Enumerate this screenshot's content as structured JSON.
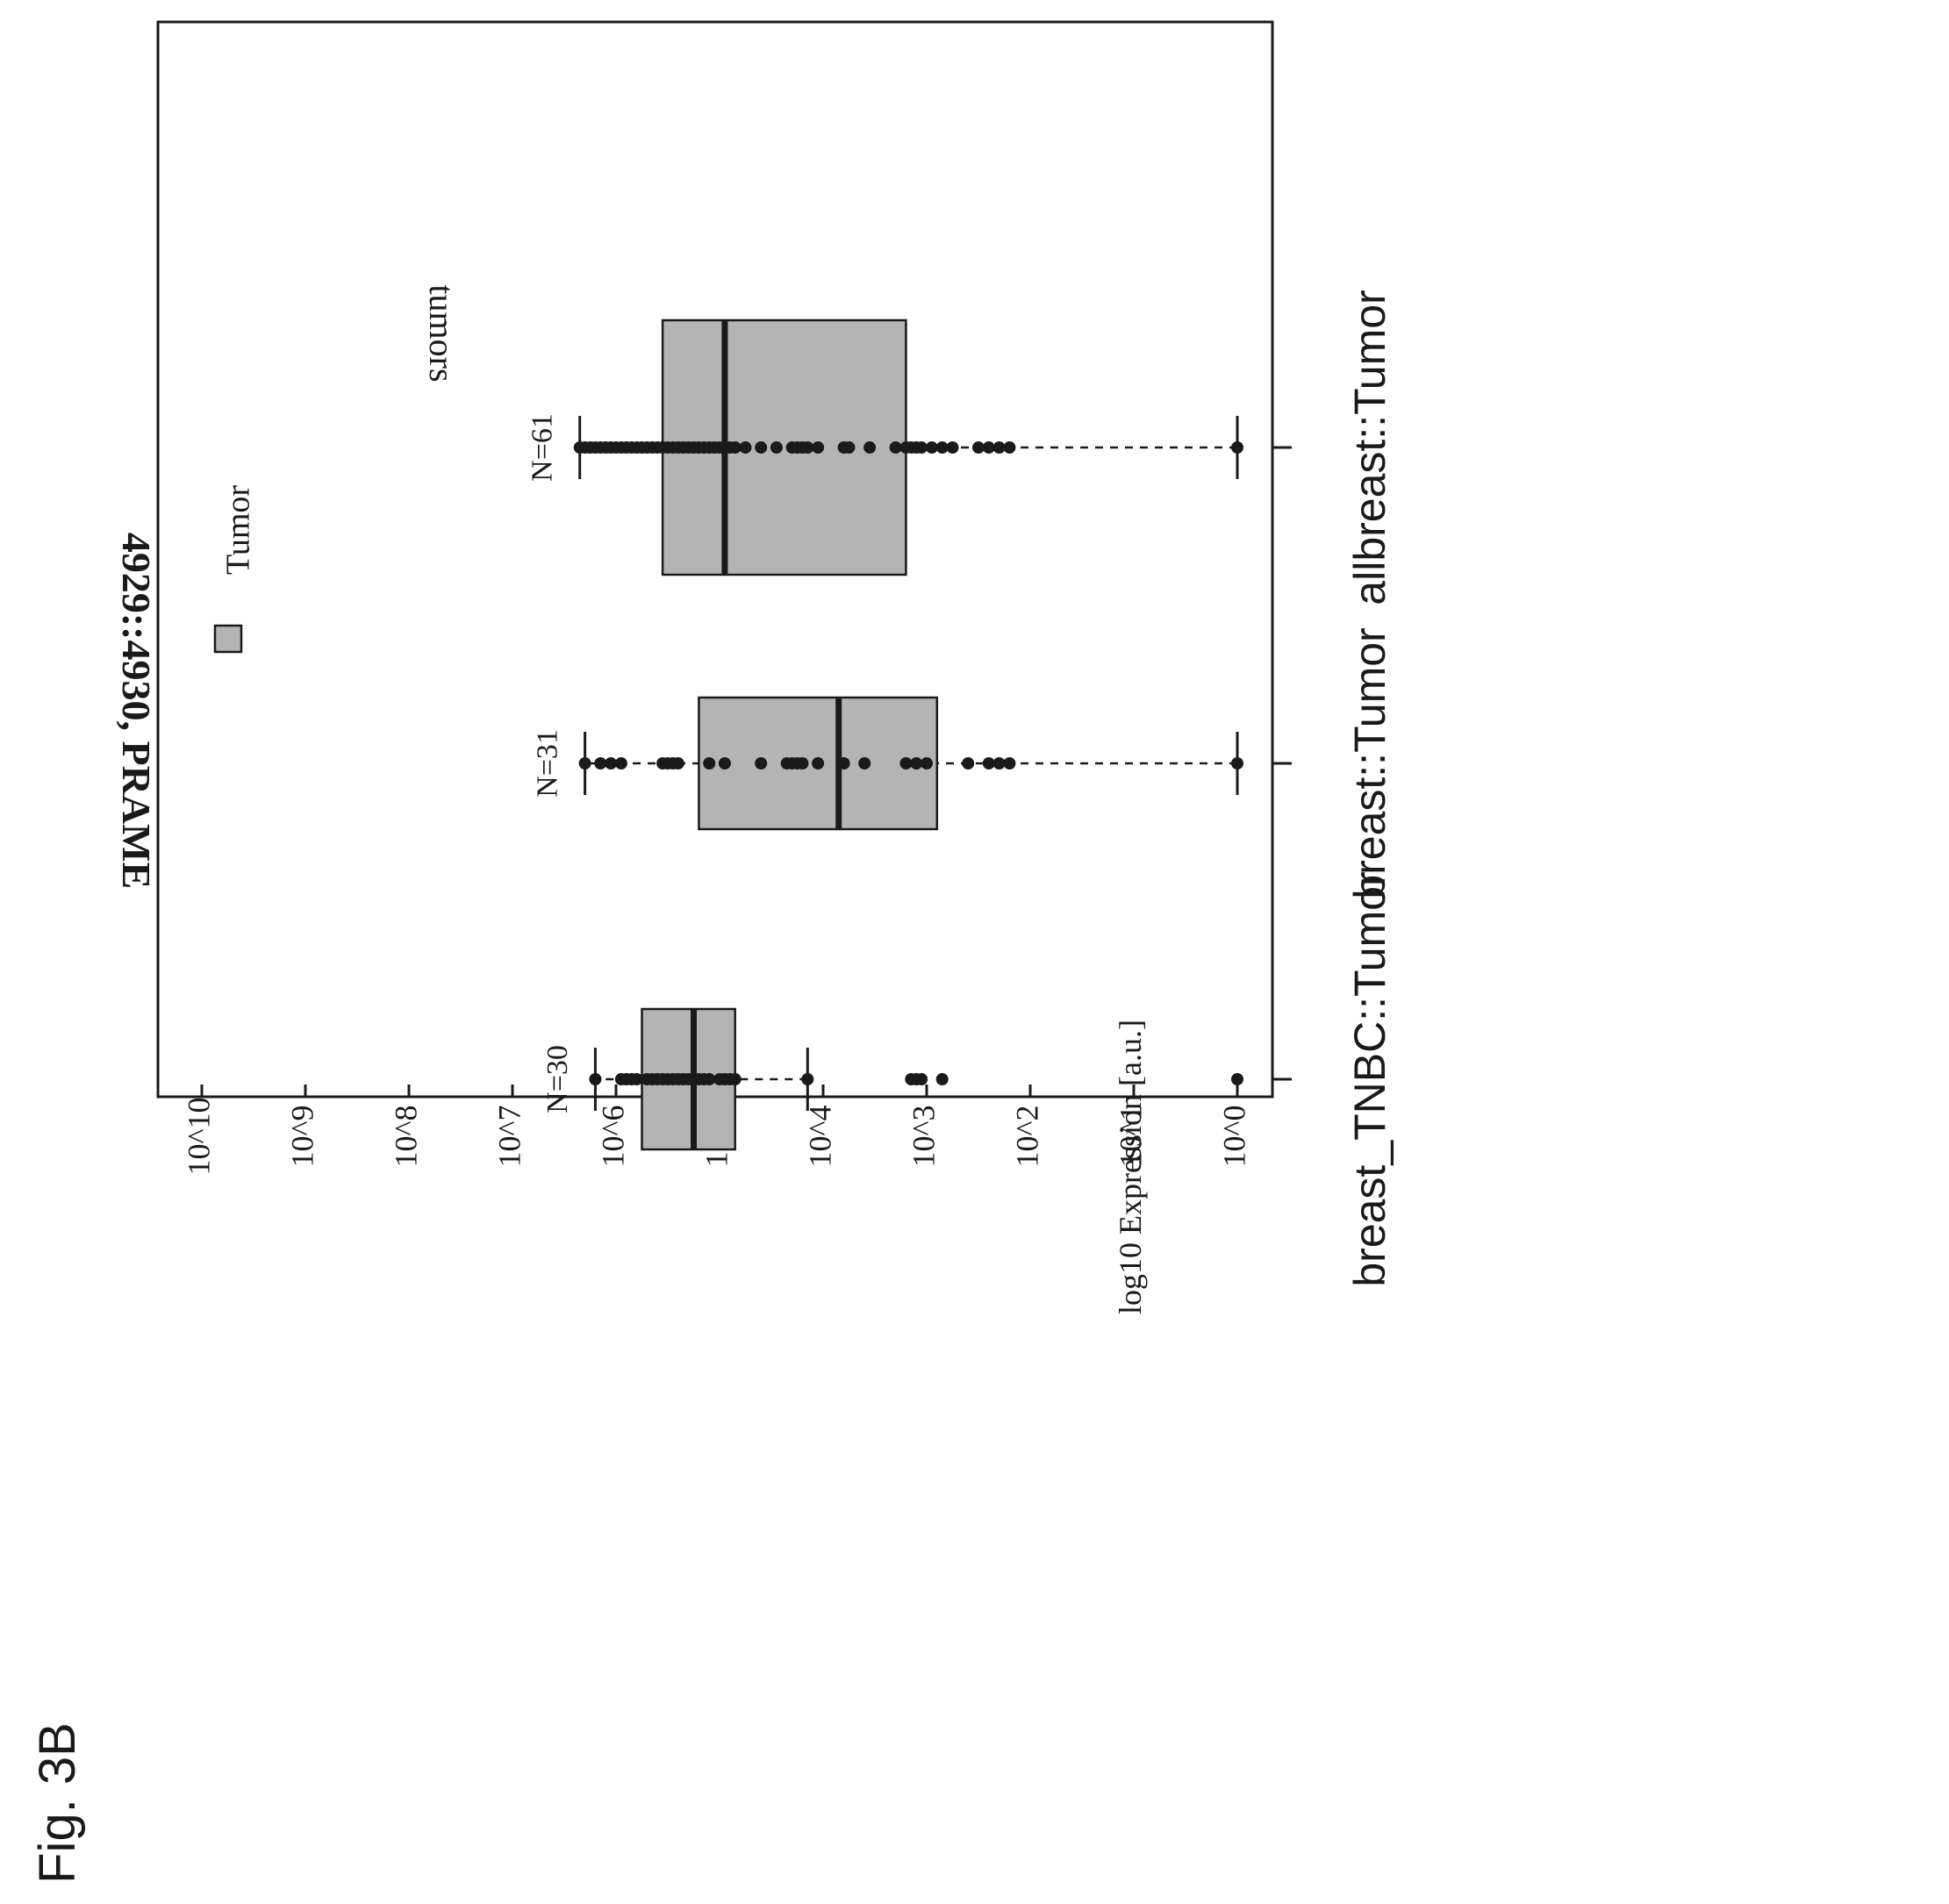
{
  "figure_label": "Fig. 3B",
  "chart_data": {
    "type": "box",
    "title": "4929::4930, PRAME",
    "subtitle": "tumors",
    "ylabel": "log10 Expression [a.u.]",
    "y_scale": "log10",
    "y_range": [
      0,
      10
    ],
    "y_ticks": [
      "10^0",
      "10^1",
      "10^2",
      "10^3",
      "10^4",
      "10^5",
      "10^6",
      "10^7",
      "10^8",
      "10^9",
      "10^10"
    ],
    "legend": {
      "entries": [
        "Tumor"
      ],
      "color": "#b4b4b4",
      "placement": "top-left"
    },
    "orientation": "rotated 90 degrees clockwise on page",
    "categories": [
      "allbreast::Tumor",
      "breast::Tumor",
      "breast_TNBC::Tumor"
    ],
    "counts": [
      "N=61",
      "N=31",
      "N=30"
    ],
    "box_color": "#b4b4b4",
    "boxes": [
      {
        "category": "allbreast::Tumor",
        "whisker_low": 0,
        "q1": 3.2,
        "median": 4.95,
        "q3": 5.55,
        "whisker_high": 6.35,
        "points": [
          0,
          2.2,
          2.3,
          2.4,
          2.5,
          2.75,
          2.85,
          2.95,
          3.05,
          3.1,
          3.15,
          3.2,
          3.3,
          3.55,
          3.75,
          3.8,
          4.05,
          4.15,
          4.2,
          4.25,
          4.3,
          4.45,
          4.6,
          4.75,
          4.85,
          4.9,
          4.95,
          5.0,
          5.05,
          5.1,
          5.15,
          5.2,
          5.25,
          5.3,
          5.35,
          5.4,
          5.45,
          5.5,
          5.55,
          5.6,
          5.65,
          5.7,
          5.75,
          5.8,
          5.85,
          5.9,
          5.95,
          6.0,
          6.05,
          6.1,
          6.15,
          6.2,
          6.25,
          6.3,
          6.35
        ]
      },
      {
        "category": "breast::Tumor",
        "whisker_low": 0,
        "q1": 2.9,
        "median": 3.85,
        "q3": 5.2,
        "whisker_high": 6.3,
        "points": [
          0,
          2.2,
          2.3,
          2.4,
          2.6,
          3.0,
          3.1,
          3.2,
          3.6,
          3.8,
          4.05,
          4.2,
          4.25,
          4.3,
          4.35,
          4.6,
          4.95,
          5.1,
          5.4,
          5.45,
          5.5,
          5.55,
          5.95,
          6.05,
          6.15,
          6.3
        ]
      },
      {
        "category": "breast_TNBC::Tumor",
        "whisker_low": 4.15,
        "q1": 4.85,
        "median": 5.25,
        "q3": 5.75,
        "whisker_high": 6.2,
        "points": [
          0,
          2.85,
          3.05,
          3.1,
          3.15,
          4.15,
          4.85,
          4.9,
          4.95,
          5.0,
          5.1,
          5.15,
          5.2,
          5.25,
          5.3,
          5.35,
          5.4,
          5.45,
          5.5,
          5.55,
          5.6,
          5.65,
          5.7,
          5.8,
          5.85,
          5.9,
          5.95,
          6.2
        ]
      }
    ]
  }
}
